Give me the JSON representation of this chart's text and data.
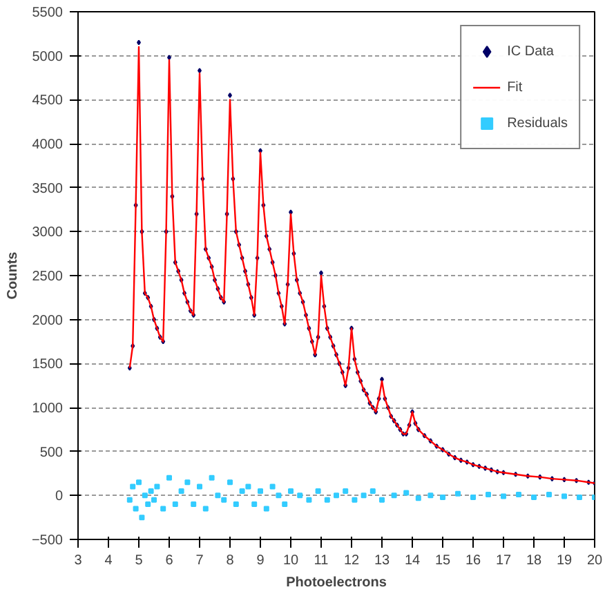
{
  "chart_data": {
    "type": "scatter",
    "xlabel": "Photoelectrons",
    "ylabel": "Counts",
    "xlim": [
      3,
      20
    ],
    "xticks": [
      3,
      4,
      5,
      6,
      7,
      8,
      9,
      10,
      11,
      12,
      13,
      14,
      15,
      16,
      17,
      18,
      19,
      20
    ],
    "ylim": [
      -500,
      5500
    ],
    "yticks": [
      -500,
      0,
      500,
      1000,
      1500,
      2000,
      2500,
      3000,
      3500,
      4000,
      4500,
      5000,
      5500
    ],
    "grid": "y",
    "legend": "top right",
    "series": [
      {
        "name": "IC Data",
        "marker": "diamond",
        "color": "#000066",
        "x": [
          4.7,
          4.8,
          4.9,
          5.0,
          5.1,
          5.2,
          5.3,
          5.4,
          5.5,
          5.6,
          5.7,
          5.8,
          5.9,
          6.0,
          6.1,
          6.2,
          6.3,
          6.4,
          6.5,
          6.6,
          6.7,
          6.8,
          6.9,
          7.0,
          7.1,
          7.2,
          7.3,
          7.4,
          7.5,
          7.6,
          7.7,
          7.8,
          7.9,
          8.0,
          8.1,
          8.2,
          8.3,
          8.4,
          8.5,
          8.6,
          8.7,
          8.8,
          8.9,
          9.0,
          9.1,
          9.2,
          9.3,
          9.4,
          9.5,
          9.6,
          9.7,
          9.8,
          9.9,
          10.0,
          10.1,
          10.2,
          10.3,
          10.4,
          10.5,
          10.6,
          10.7,
          10.8,
          10.9,
          11.0,
          11.1,
          11.2,
          11.3,
          11.4,
          11.5,
          11.6,
          11.7,
          11.8,
          11.9,
          12.0,
          12.1,
          12.2,
          12.3,
          12.4,
          12.5,
          12.6,
          12.7,
          12.8,
          12.9,
          13.0,
          13.1,
          13.2,
          13.3,
          13.4,
          13.5,
          13.6,
          13.7,
          13.8,
          13.9,
          14.0,
          14.1,
          14.2,
          14.4,
          14.6,
          14.8,
          15.0,
          15.2,
          15.4,
          15.6,
          15.8,
          16.0,
          16.2,
          16.4,
          16.6,
          16.8,
          17.0,
          17.4,
          17.8,
          18.2,
          18.6,
          19.0,
          19.4,
          19.8,
          20.0
        ],
        "values": [
          1450,
          1700,
          3300,
          5150,
          3000,
          2300,
          2250,
          2150,
          2000,
          1900,
          1800,
          1750,
          3000,
          4980,
          3400,
          2650,
          2550,
          2450,
          2300,
          2200,
          2100,
          2050,
          3200,
          4830,
          3600,
          2800,
          2700,
          2600,
          2450,
          2350,
          2250,
          2200,
          3200,
          4550,
          3600,
          3000,
          2850,
          2700,
          2550,
          2400,
          2250,
          2050,
          2700,
          3920,
          3300,
          2950,
          2800,
          2650,
          2500,
          2300,
          2150,
          1950,
          2400,
          3220,
          2750,
          2450,
          2300,
          2200,
          2050,
          1900,
          1750,
          1600,
          1800,
          2530,
          2150,
          1900,
          1800,
          1700,
          1600,
          1500,
          1400,
          1250,
          1450,
          1900,
          1550,
          1400,
          1300,
          1200,
          1150,
          1050,
          1000,
          950,
          1100,
          1320,
          1100,
          1000,
          900,
          850,
          800,
          750,
          700,
          700,
          800,
          950,
          820,
          750,
          680,
          620,
          560,
          520,
          470,
          430,
          400,
          380,
          350,
          330,
          310,
          290,
          270,
          260,
          240,
          220,
          210,
          190,
          180,
          170,
          150,
          140
        ]
      },
      {
        "name": "Fit",
        "type": "line",
        "marker": "none",
        "color": "#ff0000",
        "x": [
          4.7,
          4.8,
          4.9,
          5.0,
          5.1,
          5.2,
          5.3,
          5.4,
          5.5,
          5.6,
          5.7,
          5.8,
          5.9,
          6.0,
          6.1,
          6.2,
          6.3,
          6.4,
          6.5,
          6.6,
          6.7,
          6.8,
          6.9,
          7.0,
          7.1,
          7.2,
          7.3,
          7.4,
          7.5,
          7.6,
          7.7,
          7.8,
          7.9,
          8.0,
          8.1,
          8.2,
          8.3,
          8.4,
          8.5,
          8.6,
          8.7,
          8.8,
          8.9,
          9.0,
          9.1,
          9.2,
          9.3,
          9.4,
          9.5,
          9.6,
          9.7,
          9.8,
          9.9,
          10.0,
          10.1,
          10.2,
          10.3,
          10.4,
          10.5,
          10.6,
          10.7,
          10.8,
          10.9,
          11.0,
          11.1,
          11.2,
          11.3,
          11.4,
          11.5,
          11.6,
          11.7,
          11.8,
          11.9,
          12.0,
          12.1,
          12.2,
          12.3,
          12.4,
          12.5,
          12.6,
          12.7,
          12.8,
          12.9,
          13.0,
          13.1,
          13.2,
          13.3,
          13.4,
          13.5,
          13.6,
          13.7,
          13.8,
          13.9,
          14.0,
          14.1,
          14.2,
          14.4,
          14.6,
          14.8,
          15.0,
          15.2,
          15.4,
          15.6,
          15.8,
          16.0,
          16.2,
          16.4,
          16.6,
          16.8,
          17.0,
          17.4,
          17.8,
          18.2,
          18.6,
          19.0,
          19.4,
          19.8,
          20.0
        ],
        "values": [
          1450,
          1700,
          3300,
          5100,
          3000,
          2300,
          2250,
          2150,
          2000,
          1900,
          1800,
          1750,
          3000,
          4950,
          3400,
          2650,
          2550,
          2450,
          2300,
          2200,
          2100,
          2050,
          3200,
          4800,
          3600,
          2800,
          2700,
          2600,
          2450,
          2350,
          2250,
          2200,
          3200,
          4500,
          3600,
          3000,
          2850,
          2700,
          2550,
          2400,
          2250,
          2050,
          2700,
          3900,
          3300,
          2950,
          2800,
          2650,
          2500,
          2300,
          2150,
          1950,
          2400,
          3200,
          2750,
          2450,
          2300,
          2200,
          2050,
          1900,
          1750,
          1600,
          1800,
          2500,
          2150,
          1900,
          1800,
          1700,
          1600,
          1500,
          1400,
          1250,
          1450,
          1900,
          1550,
          1400,
          1300,
          1200,
          1150,
          1050,
          1000,
          950,
          1100,
          1300,
          1100,
          1000,
          900,
          850,
          800,
          750,
          700,
          700,
          800,
          950,
          820,
          750,
          680,
          620,
          560,
          520,
          470,
          430,
          400,
          380,
          350,
          330,
          310,
          290,
          270,
          260,
          240,
          220,
          210,
          190,
          180,
          170,
          150,
          140
        ]
      },
      {
        "name": "Residuals",
        "marker": "square",
        "color": "#33ccff",
        "x": [
          4.7,
          4.8,
          4.9,
          5.0,
          5.1,
          5.2,
          5.3,
          5.4,
          5.5,
          5.6,
          5.8,
          6.0,
          6.2,
          6.4,
          6.6,
          6.8,
          7.0,
          7.2,
          7.4,
          7.6,
          7.8,
          8.0,
          8.2,
          8.4,
          8.6,
          8.8,
          9.0,
          9.2,
          9.4,
          9.6,
          9.8,
          10.0,
          10.3,
          10.6,
          10.9,
          11.2,
          11.5,
          11.8,
          12.1,
          12.4,
          12.7,
          13.0,
          13.4,
          13.8,
          14.2,
          14.6,
          15.0,
          15.5,
          16.0,
          16.5,
          17.0,
          17.5,
          18.0,
          18.5,
          19.0,
          19.5,
          20.0
        ],
        "values": [
          -50,
          100,
          -150,
          150,
          -250,
          0,
          -100,
          50,
          -50,
          100,
          -150,
          200,
          -100,
          50,
          150,
          -100,
          100,
          -150,
          200,
          0,
          -50,
          150,
          -100,
          50,
          100,
          -100,
          50,
          -150,
          100,
          0,
          -100,
          50,
          0,
          -50,
          50,
          -50,
          0,
          50,
          -50,
          0,
          50,
          -50,
          0,
          30,
          -30,
          0,
          -20,
          20,
          -20,
          10,
          -10,
          10,
          -20,
          10,
          -10,
          -20,
          -20
        ]
      }
    ]
  }
}
